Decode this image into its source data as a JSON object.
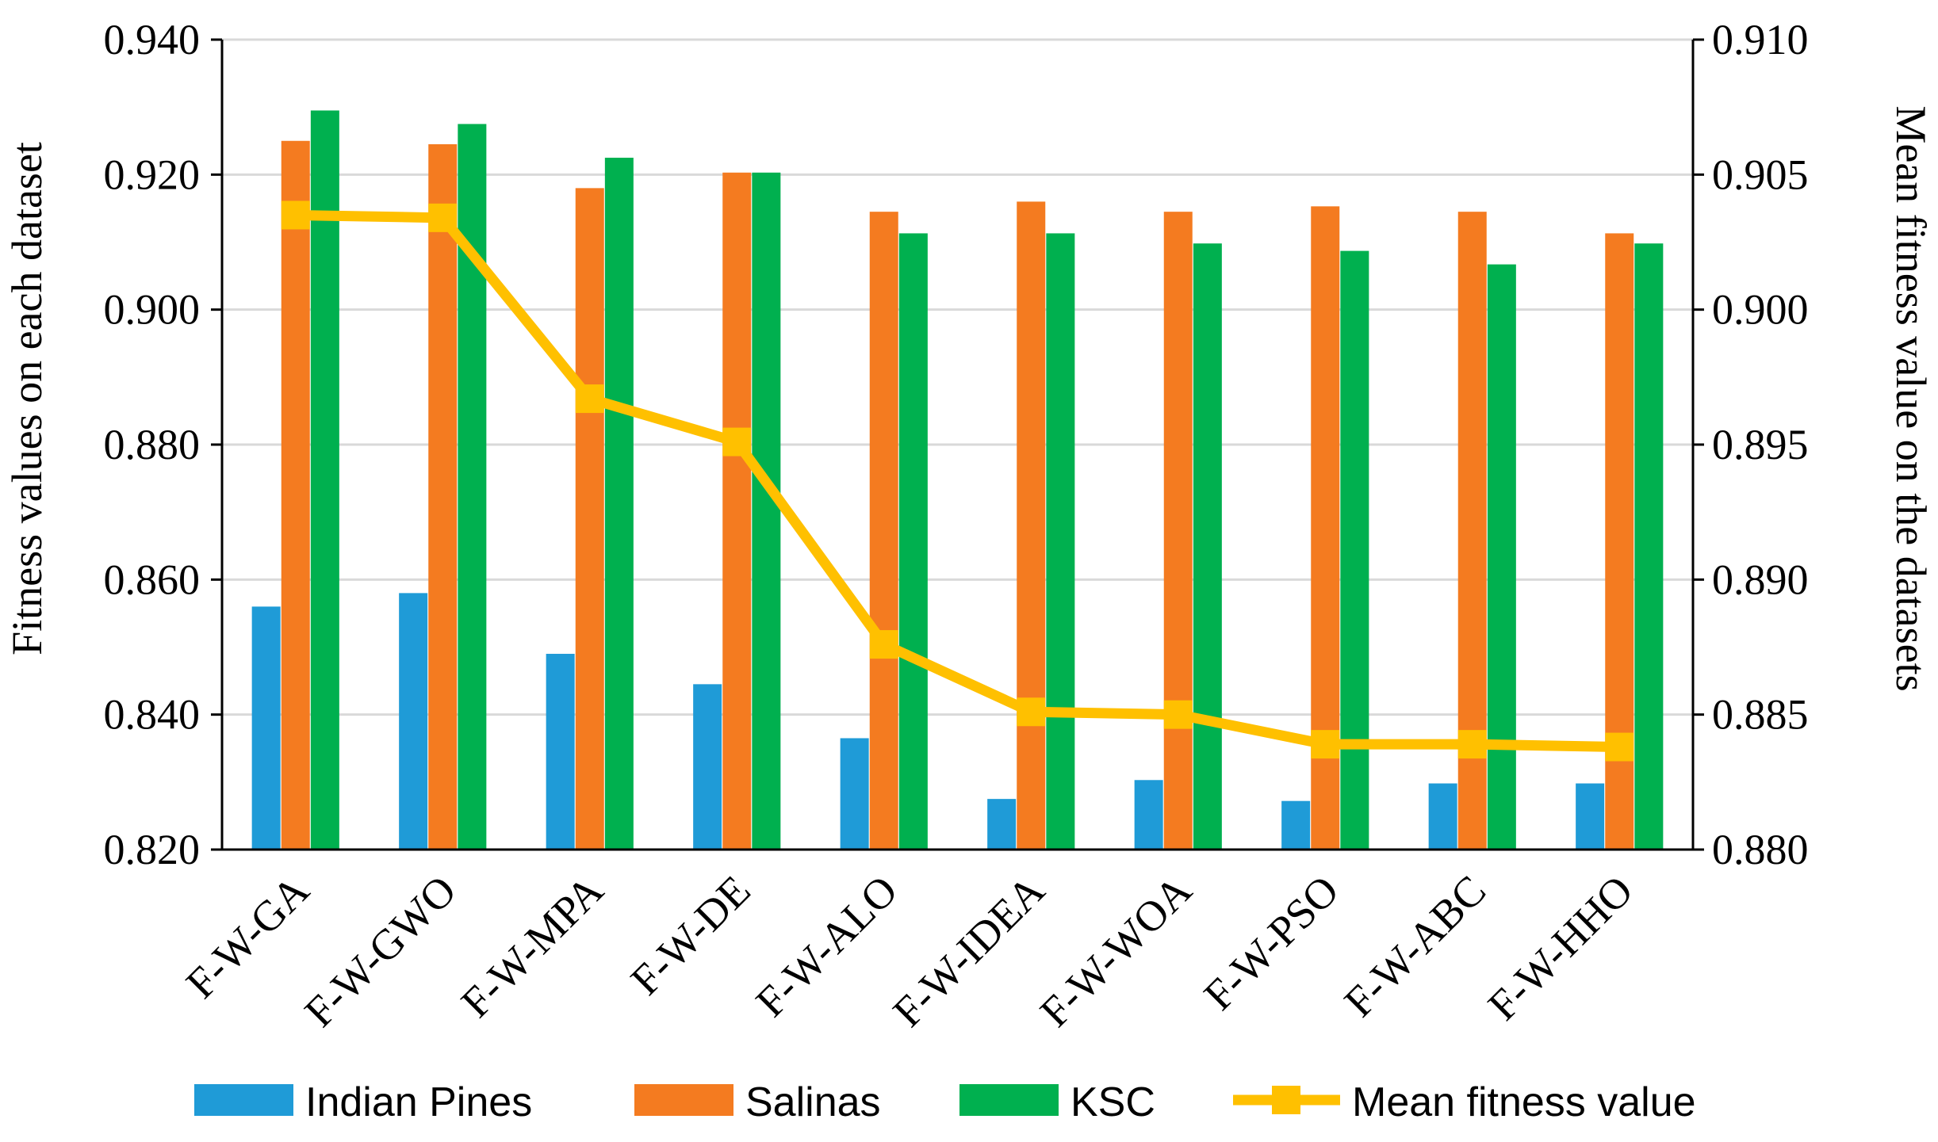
{
  "chart_data": {
    "type": "bar",
    "title": "",
    "categories": [
      "F-W-GA",
      "F-W-GWO",
      "F-W-MPA",
      "F-W-DE",
      "F-W-ALO",
      "F-W-IDEA",
      "F-W-WOA",
      "F-W-PSO",
      "F-W-ABC",
      "F-W-HHO"
    ],
    "series": [
      {
        "name": "Indian Pines",
        "color": "#1f9bd7",
        "axis": "left",
        "kind": "bar",
        "values": [
          0.856,
          0.858,
          0.849,
          0.8445,
          0.8365,
          0.8275,
          0.8303,
          0.8272,
          0.8298,
          0.8298
        ]
      },
      {
        "name": "Salinas",
        "color": "#f47b20",
        "axis": "left",
        "kind": "bar",
        "values": [
          0.925,
          0.9245,
          0.918,
          0.9203,
          0.9145,
          0.916,
          0.9145,
          0.9153,
          0.9145,
          0.9113
        ]
      },
      {
        "name": "KSC",
        "color": "#00b04f",
        "axis": "left",
        "kind": "bar",
        "values": [
          0.9295,
          0.9275,
          0.9225,
          0.9203,
          0.9113,
          0.9113,
          0.9098,
          0.9087,
          0.9067,
          0.9098
        ]
      },
      {
        "name": "Mean fitness value",
        "color": "#ffc000",
        "axis": "right",
        "kind": "line",
        "values": [
          0.9035,
          0.9034,
          0.8967,
          0.8951,
          0.8876,
          0.8851,
          0.885,
          0.8839,
          0.8839,
          0.8838
        ]
      }
    ],
    "ylabel": "Fitness values on each dataset",
    "y2label": "Mean fitness value on the datasets",
    "ylim": [
      0.82,
      0.94
    ],
    "y2lim": [
      0.88,
      0.91
    ],
    "yticks": [
      "0.820",
      "0.840",
      "0.860",
      "0.880",
      "0.900",
      "0.920",
      "0.940"
    ],
    "y2ticks": [
      "0.880",
      "0.885",
      "0.890",
      "0.895",
      "0.900",
      "0.905",
      "0.910"
    ],
    "grid": true,
    "legend_position": "bottom"
  }
}
